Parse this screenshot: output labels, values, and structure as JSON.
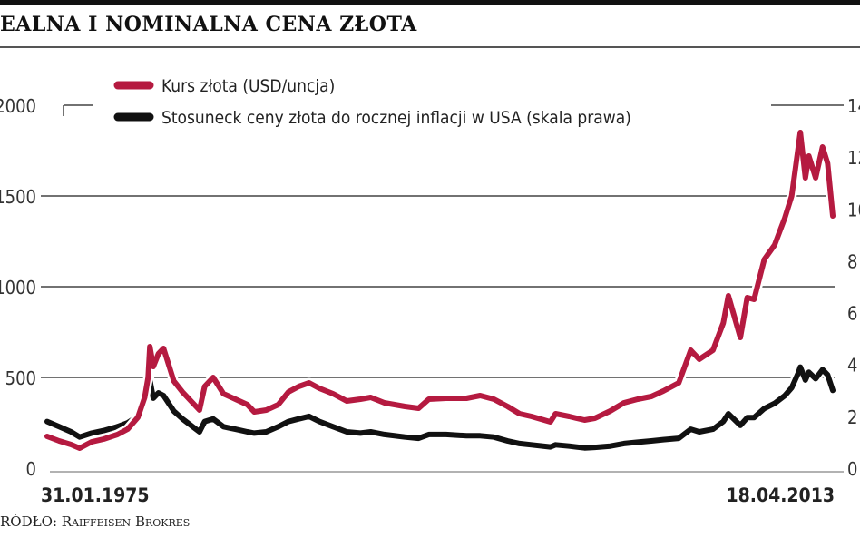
{
  "title": "EALNA I NOMINALNA CENA ZŁOTA",
  "source": "RÓDŁO: Raiffeisen Brokres",
  "chart_data": {
    "type": "line",
    "title": "EALNA I NOMINALNA CENA ZŁOTA",
    "x_start_label": "31.01.1975",
    "x_end_label": "18.04.2013",
    "x_range": [
      "1975-01",
      "2013-04"
    ],
    "y_left": {
      "range": [
        0,
        2000
      ],
      "ticks": [
        0,
        500,
        1000,
        1500,
        2000
      ]
    },
    "y_right": {
      "range": [
        0,
        14
      ],
      "ticks": [
        0,
        2,
        4,
        6,
        8,
        10,
        12,
        14
      ]
    },
    "grid": "horizontal",
    "legend_position": "top",
    "series": [
      {
        "name": "Kurs złota (USD/uncja)",
        "axis": "left",
        "color": "#b51a40",
        "x": [
          "1975-01",
          "1975-08",
          "1976-03",
          "1976-08",
          "1977-03",
          "1977-10",
          "1978-06",
          "1978-12",
          "1979-06",
          "1979-10",
          "1979-12",
          "1980-01",
          "1980-03",
          "1980-06",
          "1980-09",
          "1981-03",
          "1981-08",
          "1982-06",
          "1982-09",
          "1983-02",
          "1983-08",
          "1984-03",
          "1984-10",
          "1985-02",
          "1985-09",
          "1986-04",
          "1986-10",
          "1987-04",
          "1987-10",
          "1988-04",
          "1988-12",
          "1989-08",
          "1990-04",
          "1990-10",
          "1991-06",
          "1992-06",
          "1993-02",
          "1993-08",
          "1994-06",
          "1995-06",
          "1996-02",
          "1996-10",
          "1997-06",
          "1998-01",
          "1998-08",
          "1999-07",
          "1999-10",
          "2000-06",
          "2001-03",
          "2001-09",
          "2002-06",
          "2003-02",
          "2003-10",
          "2004-06",
          "2005-01",
          "2005-10",
          "2006-05",
          "2006-10",
          "2007-06",
          "2007-12",
          "2008-03",
          "2008-10",
          "2009-02",
          "2009-06",
          "2009-12",
          "2010-06",
          "2010-12",
          "2011-04",
          "2011-08",
          "2011-09",
          "2011-12",
          "2012-02",
          "2012-06",
          "2012-10",
          "2013-01",
          "2013-04"
        ],
        "y": [
          175,
          150,
          130,
          110,
          145,
          160,
          185,
          215,
          280,
          390,
          500,
          670,
          560,
          630,
          660,
          480,
          420,
          320,
          450,
          500,
          410,
          380,
          350,
          310,
          320,
          350,
          420,
          450,
          470,
          440,
          410,
          370,
          380,
          390,
          360,
          340,
          330,
          380,
          385,
          385,
          400,
          380,
          340,
          300,
          285,
          255,
          300,
          285,
          265,
          275,
          315,
          360,
          380,
          395,
          425,
          470,
          650,
          600,
          650,
          800,
          950,
          720,
          940,
          930,
          1150,
          1230,
          1380,
          1500,
          1780,
          1850,
          1600,
          1720,
          1600,
          1770,
          1680,
          1390
        ]
      },
      {
        "name": "Stosuneck ceny złota do rocznej inflacji w USA (skala prawa)",
        "axis": "right",
        "color": "#111111",
        "x": [
          "1975-01",
          "1975-08",
          "1976-03",
          "1976-08",
          "1977-03",
          "1977-10",
          "1978-06",
          "1978-12",
          "1979-06",
          "1979-10",
          "1979-12",
          "1980-01",
          "1980-03",
          "1980-06",
          "1980-09",
          "1981-03",
          "1981-08",
          "1982-06",
          "1982-09",
          "1983-02",
          "1983-08",
          "1984-03",
          "1984-10",
          "1985-02",
          "1985-09",
          "1986-04",
          "1986-10",
          "1987-04",
          "1987-10",
          "1988-04",
          "1988-12",
          "1989-08",
          "1990-04",
          "1990-10",
          "1991-06",
          "1992-06",
          "1993-02",
          "1993-08",
          "1994-06",
          "1995-06",
          "1996-02",
          "1996-10",
          "1997-06",
          "1998-01",
          "1998-08",
          "1999-07",
          "1999-10",
          "2000-06",
          "2001-03",
          "2001-09",
          "2002-06",
          "2003-02",
          "2003-10",
          "2004-06",
          "2005-01",
          "2005-10",
          "2006-05",
          "2006-10",
          "2007-06",
          "2007-12",
          "2008-03",
          "2008-10",
          "2009-02",
          "2009-06",
          "2009-12",
          "2010-06",
          "2010-12",
          "2011-04",
          "2011-08",
          "2011-09",
          "2011-12",
          "2012-02",
          "2012-06",
          "2012-10",
          "2013-01",
          "2013-04"
        ],
        "y": [
          1.8,
          1.6,
          1.4,
          1.2,
          1.35,
          1.45,
          1.6,
          1.75,
          2.0,
          2.6,
          3.1,
          3.4,
          2.7,
          2.9,
          2.8,
          2.2,
          1.9,
          1.4,
          1.8,
          1.9,
          1.6,
          1.5,
          1.4,
          1.35,
          1.4,
          1.6,
          1.8,
          1.9,
          2.0,
          1.8,
          1.6,
          1.4,
          1.35,
          1.4,
          1.3,
          1.2,
          1.15,
          1.3,
          1.3,
          1.25,
          1.25,
          1.2,
          1.05,
          0.95,
          0.9,
          0.82,
          0.9,
          0.85,
          0.78,
          0.8,
          0.85,
          0.95,
          1.0,
          1.05,
          1.1,
          1.15,
          1.5,
          1.4,
          1.5,
          1.8,
          2.1,
          1.65,
          1.95,
          1.95,
          2.3,
          2.5,
          2.8,
          3.1,
          3.7,
          3.9,
          3.4,
          3.7,
          3.45,
          3.8,
          3.6,
          3.0
        ]
      }
    ]
  }
}
